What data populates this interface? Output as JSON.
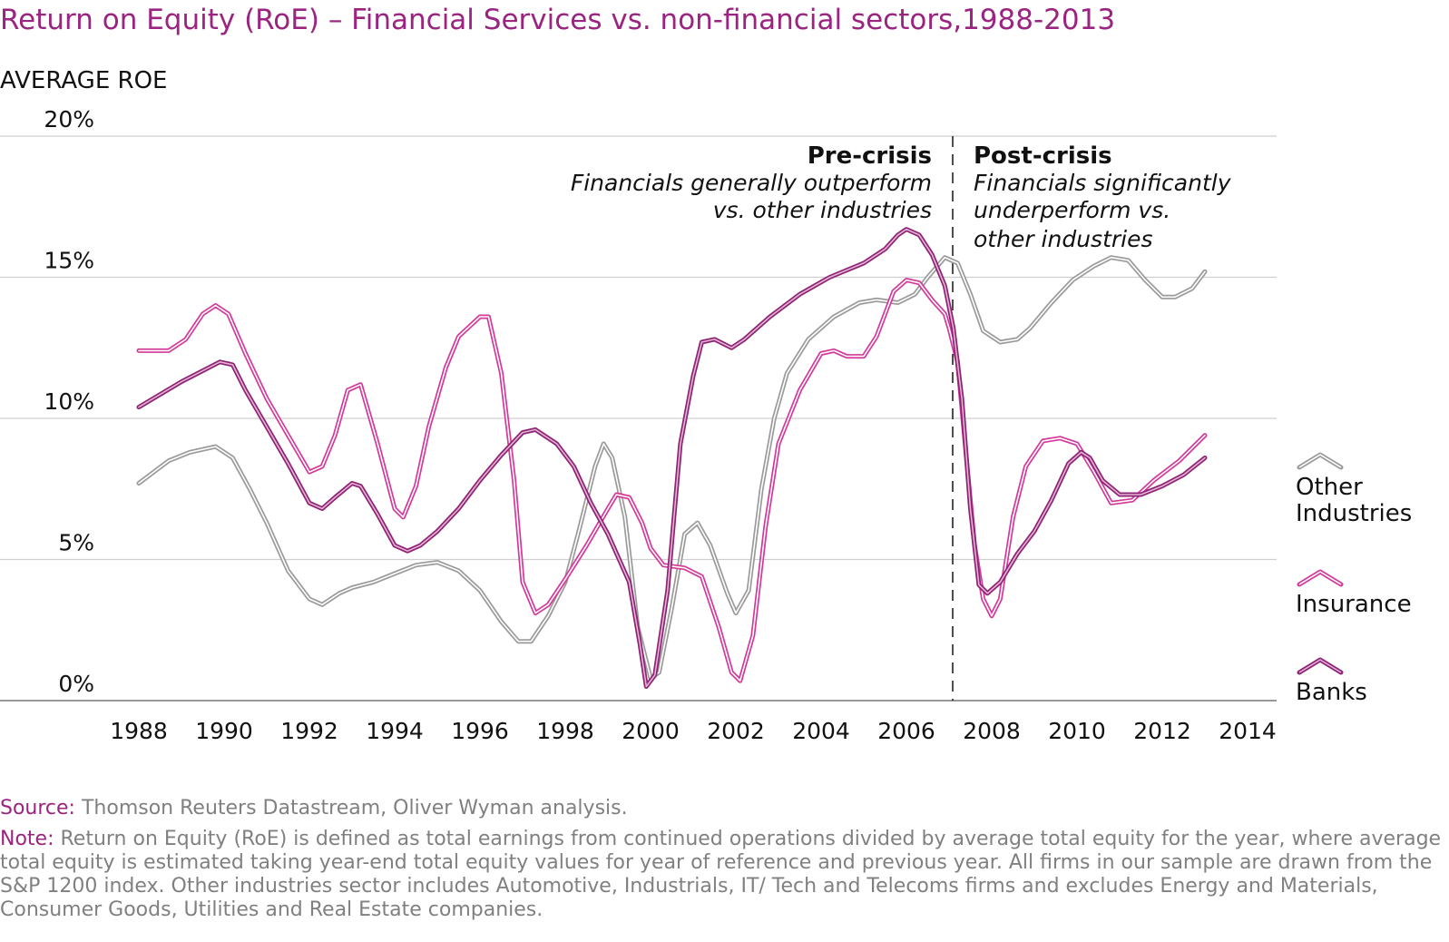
{
  "chart_data": {
    "type": "line",
    "title": "Return on Equity (RoE) – Financial Services vs. non-financial sectors,1988-2013",
    "ylabel": "AVERAGE ROE",
    "xlabel": "",
    "xlim": [
      1988,
      2014
    ],
    "ylim": [
      0,
      20
    ],
    "x_ticks": [
      "1988",
      "1990",
      "1992",
      "1994",
      "1996",
      "1998",
      "2000",
      "2002",
      "2004",
      "2006",
      "2008",
      "2010",
      "2012",
      "2014"
    ],
    "y_ticks": [
      "0%",
      "5%",
      "10%",
      "15%",
      "20%"
    ],
    "grid": true,
    "legend_placement": "right",
    "divider_year": 2007,
    "annotations": {
      "pre_title": "Pre-crisis",
      "pre_lines": [
        "Financials generally outperform",
        "vs. other industries"
      ],
      "post_title": "Post-crisis",
      "post_lines": [
        "Financials significantly",
        "underperform vs.",
        "other industries"
      ]
    },
    "series": [
      {
        "name": "Other Industries",
        "legend_lines": [
          "Other",
          "Industries"
        ],
        "color": "#9a9a9a",
        "inner": "#ffffff",
        "points": [
          [
            1988,
            7.7
          ],
          [
            1988.7,
            8.5
          ],
          [
            1989.2,
            8.8
          ],
          [
            1989.8,
            9.0
          ],
          [
            1990.2,
            8.6
          ],
          [
            1990.6,
            7.5
          ],
          [
            1991,
            6.3
          ],
          [
            1991.5,
            4.6
          ],
          [
            1992,
            3.6
          ],
          [
            1992.3,
            3.4
          ],
          [
            1992.7,
            3.8
          ],
          [
            1993,
            4.0
          ],
          [
            1993.5,
            4.2
          ],
          [
            1994,
            4.5
          ],
          [
            1994.5,
            4.8
          ],
          [
            1995,
            4.9
          ],
          [
            1995.5,
            4.6
          ],
          [
            1996,
            3.9
          ],
          [
            1996.5,
            2.8
          ],
          [
            1996.9,
            2.1
          ],
          [
            1997.2,
            2.1
          ],
          [
            1997.6,
            3.0
          ],
          [
            1998,
            4.2
          ],
          [
            1998.3,
            5.9
          ],
          [
            1998.7,
            8.3
          ],
          [
            1998.9,
            9.1
          ],
          [
            1999.1,
            8.6
          ],
          [
            1999.4,
            6.5
          ],
          [
            1999.7,
            2.6
          ],
          [
            2000,
            0.8
          ],
          [
            2000.2,
            1.0
          ],
          [
            2000.5,
            3.3
          ],
          [
            2000.8,
            5.9
          ],
          [
            2001.1,
            6.3
          ],
          [
            2001.4,
            5.5
          ],
          [
            2001.8,
            3.8
          ],
          [
            2002,
            3.1
          ],
          [
            2002.3,
            3.9
          ],
          [
            2002.6,
            7.5
          ],
          [
            2002.9,
            10.0
          ],
          [
            2003.2,
            11.6
          ],
          [
            2003.7,
            12.8
          ],
          [
            2004.3,
            13.6
          ],
          [
            2004.9,
            14.1
          ],
          [
            2005.3,
            14.2
          ],
          [
            2005.8,
            14.1
          ],
          [
            2006.2,
            14.4
          ],
          [
            2006.5,
            15.0
          ],
          [
            2006.9,
            15.7
          ],
          [
            2007.2,
            15.5
          ],
          [
            2007.5,
            14.4
          ],
          [
            2007.8,
            13.1
          ],
          [
            2008.2,
            12.7
          ],
          [
            2008.6,
            12.8
          ],
          [
            2008.9,
            13.2
          ],
          [
            2009.4,
            14.1
          ],
          [
            2009.9,
            14.9
          ],
          [
            2010.4,
            15.4
          ],
          [
            2010.8,
            15.7
          ],
          [
            2011.2,
            15.6
          ],
          [
            2011.6,
            14.9
          ],
          [
            2012,
            14.3
          ],
          [
            2012.3,
            14.3
          ],
          [
            2012.7,
            14.6
          ],
          [
            2013,
            15.2
          ]
        ]
      },
      {
        "name": "Insurance",
        "legend_lines": [
          "Insurance"
        ],
        "color": "#d4399a",
        "inner": "#ffffff",
        "points": [
          [
            1988,
            12.4
          ],
          [
            1988.7,
            12.4
          ],
          [
            1989.1,
            12.8
          ],
          [
            1989.5,
            13.7
          ],
          [
            1989.8,
            14.0
          ],
          [
            1990.1,
            13.7
          ],
          [
            1990.5,
            12.3
          ],
          [
            1991,
            10.7
          ],
          [
            1991.5,
            9.4
          ],
          [
            1992,
            8.1
          ],
          [
            1992.3,
            8.3
          ],
          [
            1992.6,
            9.4
          ],
          [
            1992.9,
            11.0
          ],
          [
            1993.2,
            11.2
          ],
          [
            1993.6,
            9.1
          ],
          [
            1994,
            6.8
          ],
          [
            1994.2,
            6.5
          ],
          [
            1994.5,
            7.6
          ],
          [
            1994.8,
            9.7
          ],
          [
            1995.2,
            11.8
          ],
          [
            1995.5,
            12.9
          ],
          [
            1996,
            13.6
          ],
          [
            1996.2,
            13.6
          ],
          [
            1996.5,
            11.6
          ],
          [
            1996.8,
            7.8
          ],
          [
            1997,
            4.2
          ],
          [
            1997.3,
            3.1
          ],
          [
            1997.6,
            3.4
          ],
          [
            1998,
            4.3
          ],
          [
            1998.5,
            5.5
          ],
          [
            1999,
            6.8
          ],
          [
            1999.2,
            7.3
          ],
          [
            1999.5,
            7.2
          ],
          [
            1999.8,
            6.3
          ],
          [
            2000,
            5.4
          ],
          [
            2000.3,
            4.8
          ],
          [
            2000.8,
            4.7
          ],
          [
            2001.2,
            4.4
          ],
          [
            2001.6,
            2.6
          ],
          [
            2001.9,
            1.0
          ],
          [
            2002.1,
            0.7
          ],
          [
            2002.4,
            2.3
          ],
          [
            2002.7,
            6.2
          ],
          [
            2003,
            9.1
          ],
          [
            2003.5,
            11.0
          ],
          [
            2004,
            12.3
          ],
          [
            2004.3,
            12.4
          ],
          [
            2004.6,
            12.2
          ],
          [
            2005,
            12.2
          ],
          [
            2005.3,
            12.9
          ],
          [
            2005.7,
            14.5
          ],
          [
            2006,
            14.9
          ],
          [
            2006.3,
            14.8
          ],
          [
            2006.6,
            14.2
          ],
          [
            2006.9,
            13.7
          ],
          [
            2007,
            13.2
          ],
          [
            2007.2,
            12.0
          ],
          [
            2007.4,
            8.7
          ],
          [
            2007.6,
            5.5
          ],
          [
            2007.8,
            3.6
          ],
          [
            2008,
            3.0
          ],
          [
            2008.2,
            3.6
          ],
          [
            2008.5,
            6.5
          ],
          [
            2008.8,
            8.3
          ],
          [
            2009.2,
            9.2
          ],
          [
            2009.6,
            9.3
          ],
          [
            2010,
            9.1
          ],
          [
            2010.4,
            8.1
          ],
          [
            2010.8,
            7.0
          ],
          [
            2011.3,
            7.1
          ],
          [
            2011.8,
            7.8
          ],
          [
            2012.4,
            8.5
          ],
          [
            2013,
            9.4
          ]
        ]
      },
      {
        "name": "Banks",
        "legend_lines": [
          "Banks"
        ],
        "color": "#8e2375",
        "inner": "#e3b3d3",
        "points": [
          [
            1988,
            10.4
          ],
          [
            1989,
            11.3
          ],
          [
            1989.9,
            12.0
          ],
          [
            1990.2,
            11.9
          ],
          [
            1990.5,
            11.0
          ],
          [
            1991,
            9.7
          ],
          [
            1991.5,
            8.4
          ],
          [
            1992,
            7.0
          ],
          [
            1992.3,
            6.8
          ],
          [
            1992.6,
            7.2
          ],
          [
            1993,
            7.7
          ],
          [
            1993.2,
            7.6
          ],
          [
            1993.6,
            6.6
          ],
          [
            1994,
            5.5
          ],
          [
            1994.3,
            5.3
          ],
          [
            1994.6,
            5.5
          ],
          [
            1995,
            6.0
          ],
          [
            1995.5,
            6.8
          ],
          [
            1996,
            7.8
          ],
          [
            1996.5,
            8.7
          ],
          [
            1997,
            9.5
          ],
          [
            1997.3,
            9.6
          ],
          [
            1997.8,
            9.1
          ],
          [
            1998.2,
            8.3
          ],
          [
            1998.6,
            7.0
          ],
          [
            1999,
            5.9
          ],
          [
            1999.5,
            4.2
          ],
          [
            1999.75,
            2.0
          ],
          [
            1999.9,
            0.5
          ],
          [
            2000.1,
            0.9
          ],
          [
            2000.4,
            3.9
          ],
          [
            2000.7,
            9.1
          ],
          [
            2001,
            11.5
          ],
          [
            2001.2,
            12.7
          ],
          [
            2001.5,
            12.8
          ],
          [
            2001.9,
            12.5
          ],
          [
            2002.2,
            12.8
          ],
          [
            2002.8,
            13.6
          ],
          [
            2003.5,
            14.4
          ],
          [
            2004.2,
            15.0
          ],
          [
            2005,
            15.5
          ],
          [
            2005.5,
            16.0
          ],
          [
            2005.8,
            16.5
          ],
          [
            2006,
            16.7
          ],
          [
            2006.3,
            16.5
          ],
          [
            2006.6,
            15.8
          ],
          [
            2006.9,
            14.7
          ],
          [
            2007.1,
            13.2
          ],
          [
            2007.3,
            10.7
          ],
          [
            2007.5,
            6.8
          ],
          [
            2007.7,
            4.1
          ],
          [
            2007.9,
            3.8
          ],
          [
            2008.2,
            4.2
          ],
          [
            2008.6,
            5.2
          ],
          [
            2009,
            6.0
          ],
          [
            2009.4,
            7.1
          ],
          [
            2009.8,
            8.4
          ],
          [
            2010.1,
            8.8
          ],
          [
            2010.3,
            8.6
          ],
          [
            2010.6,
            7.8
          ],
          [
            2011,
            7.3
          ],
          [
            2011.5,
            7.3
          ],
          [
            2012,
            7.6
          ],
          [
            2012.5,
            8.0
          ],
          [
            2013,
            8.6
          ]
        ]
      }
    ]
  },
  "footer": {
    "source_label": "Source:",
    "source_text": " Thomson Reuters Datastream, Oliver Wyman analysis.",
    "note_label": "Note:",
    "note_text": " Return on Equity (RoE) is defined as total earnings from continued operations divided by average total equity for the year, where average total equity is estimated taking year-end total equity values for year of reference and previous year. All firms in our sample are drawn from the S&P 1200 index. Other industries sector includes Automotive, Industrials, IT/ Tech and Telecoms firms and excludes Energy and Materials, Consumer Goods, Utilities and Real Estate companies."
  }
}
